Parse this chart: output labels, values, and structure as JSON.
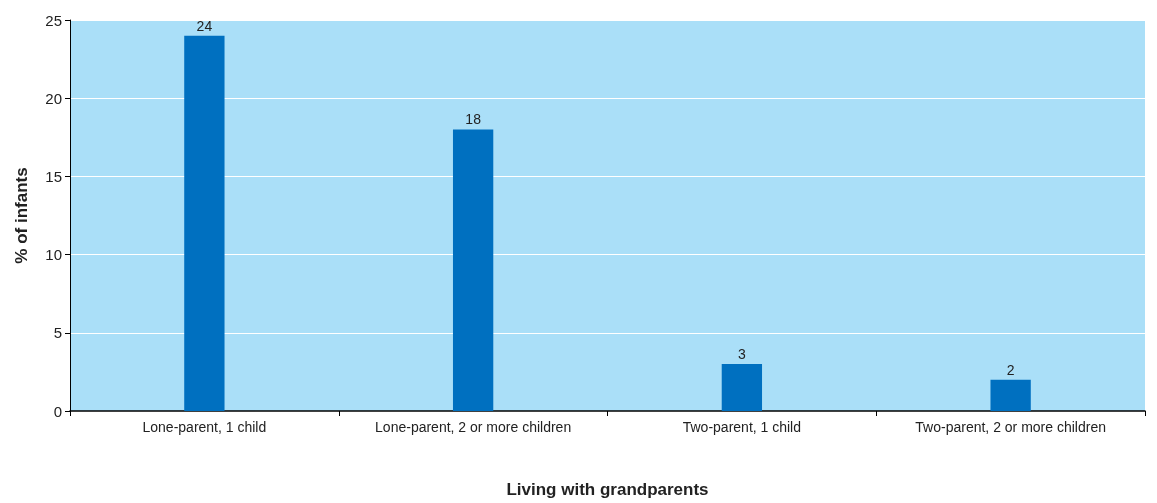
{
  "chart_data": {
    "type": "bar",
    "xlabel": "Living with grandparents",
    "ylabel": "% of infants",
    "categories": [
      "Lone-parent, 1 child",
      "Lone-parent, 2 or more children",
      "Two-parent, 1 child",
      "Two-parent, 2 or more children"
    ],
    "values": [
      24,
      18,
      3,
      2
    ],
    "color": "#0070c0",
    "ylim": [
      0,
      25
    ],
    "yticks": [
      0,
      5,
      10,
      15,
      20,
      25
    ],
    "grid": "y",
    "data_labels": true
  }
}
